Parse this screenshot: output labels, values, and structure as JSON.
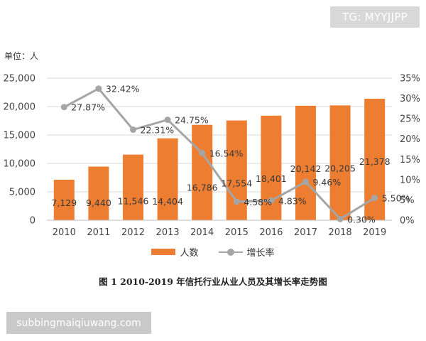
{
  "watermark_top": "TG: MYYJJPP",
  "watermark_bottom": "subbingmaiqiuwang.com",
  "unit_label": "单位：人",
  "caption": "图 1    2010-2019 年信托行业从业人员及其增长率走势图",
  "chart_data": {
    "type": "bar",
    "categories": [
      "2010",
      "2011",
      "2012",
      "2013",
      "2014",
      "2015",
      "2016",
      "2017",
      "2018",
      "2019"
    ],
    "series": [
      {
        "name": "人数",
        "type": "bar",
        "axis": "left",
        "color": "#ed7d31",
        "values": [
          7129,
          9440,
          11546,
          14404,
          16786,
          17554,
          18401,
          20142,
          20205,
          21378
        ],
        "labels": [
          "7,129",
          "9,440",
          "11,546",
          "14,404",
          "16,786",
          "17,554",
          "18,401",
          "20,142",
          "20,205",
          "21,378"
        ]
      },
      {
        "name": "增长率",
        "type": "line",
        "axis": "right",
        "color": "#a5a5a5",
        "values": [
          27.87,
          32.42,
          22.31,
          24.75,
          16.54,
          4.58,
          4.83,
          9.46,
          0.3,
          5.5
        ],
        "labels": [
          "27.87%",
          "32.42%",
          "22.31%",
          "24.75%",
          "16.54%",
          "4.58%",
          "4.83%",
          "9.46%",
          "0.30%",
          "5.50%"
        ]
      }
    ],
    "y_left": {
      "lim": [
        0,
        25000
      ],
      "ticks": [
        0,
        5000,
        10000,
        15000,
        20000,
        25000
      ],
      "tick_labels": [
        "0",
        "5,000",
        "10,000",
        "15,000",
        "20,000",
        "25,000"
      ]
    },
    "y_right": {
      "lim": [
        0,
        35
      ],
      "ticks": [
        0,
        5,
        10,
        15,
        20,
        25,
        30,
        35
      ],
      "tick_labels": [
        "0%",
        "5%",
        "10%",
        "15%",
        "20%",
        "25%",
        "30%",
        "35%"
      ]
    },
    "grid": true,
    "legend_position": "bottom"
  }
}
